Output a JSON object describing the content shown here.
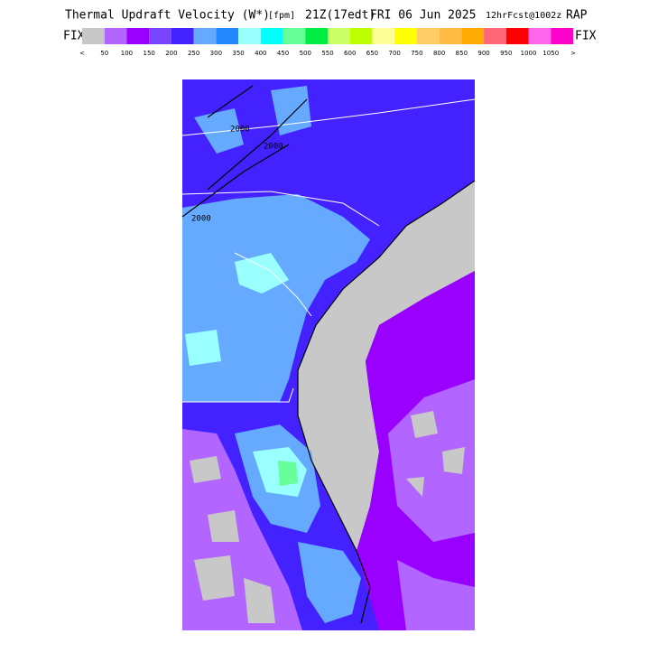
{
  "header": {
    "title": "Thermal Updraft Velocity (W*)",
    "units": "[fpm]",
    "valid": "21Z(17edt)",
    "date": "FRI 06 Jun 2025",
    "forecast": "12hrFcst@1002z",
    "model": "RAP"
  },
  "legend": {
    "left_label": "FIX",
    "right_label": "FIX",
    "colors": [
      "#c8c8c8",
      "#b266ff",
      "#9900ff",
      "#7744ff",
      "#4422ff",
      "#66aaff",
      "#2288ff",
      "#99ffff",
      "#00ffff",
      "#66ff99",
      "#00ee44",
      "#ccff66",
      "#bbff00",
      "#ffff99",
      "#ffff00",
      "#ffcc66",
      "#ffbb44",
      "#ffaa00",
      "#ff6677",
      "#ff0000",
      "#ff66ee",
      "#ff00cc"
    ],
    "labels": [
      "<",
      50,
      100,
      150,
      200,
      250,
      300,
      350,
      400,
      450,
      500,
      550,
      600,
      650,
      700,
      750,
      800,
      850,
      900,
      950,
      1000,
      1050,
      ">"
    ]
  },
  "contours": [
    "2000",
    "2000",
    "2000"
  ]
}
